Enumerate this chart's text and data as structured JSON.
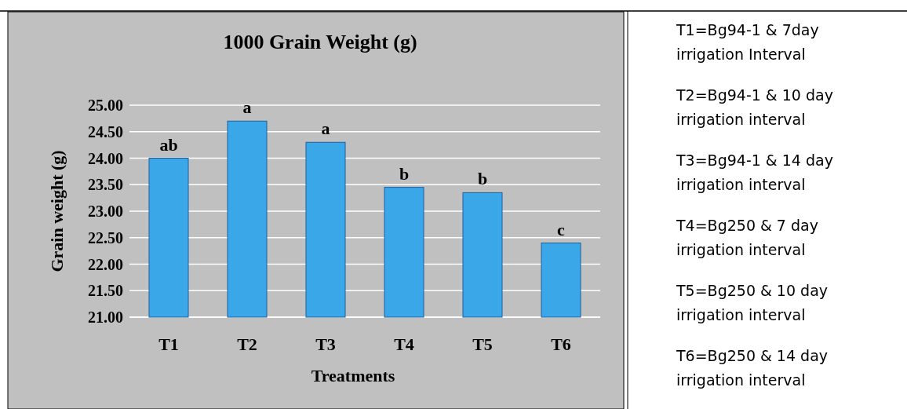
{
  "chart_data": {
    "type": "bar",
    "title": "1000 Grain Weight (g)",
    "xlabel": "Treatments",
    "ylabel": "Grain weight (g)",
    "categories": [
      "T1",
      "T2",
      "T3",
      "T4",
      "T5",
      "T6"
    ],
    "values": [
      24.0,
      24.7,
      24.3,
      23.45,
      23.35,
      22.4
    ],
    "color": "#3aa8e8",
    "ylim": [
      21,
      25
    ],
    "yticks": [
      {
        "value": 21,
        "label": "21.00"
      },
      {
        "value": 21.5,
        "label": "21.50"
      },
      {
        "value": 22,
        "label": "22.00"
      },
      {
        "value": 22.5,
        "label": "22.50"
      },
      {
        "value": 23,
        "label": "23.00"
      },
      {
        "value": 23.5,
        "label": "23.50"
      },
      {
        "value": 24,
        "label": "24.00"
      },
      {
        "value": 24.5,
        "label": "24.50"
      },
      {
        "value": 25,
        "label": "25.00"
      }
    ],
    "grid": "y",
    "annotations": [
      {
        "text": "ab",
        "x": "T1",
        "y": 24.0
      },
      {
        "text": "a",
        "x": "T2",
        "y": 24.7
      },
      {
        "text": "a",
        "x": "T3",
        "y": 24.3
      },
      {
        "text": "b",
        "x": "T4",
        "y": 23.45
      },
      {
        "text": "b",
        "x": "T5",
        "y": 23.35
      },
      {
        "text": "c",
        "x": "T6",
        "y": 22.4
      },
      "T1=Bg94-1 & 7day irrigation Interval",
      "T2=Bg94-1 & 10 day irrigation interval",
      "T3=Bg94-1 & 14 day irrigation interval",
      "T4=Bg250 & 7 day irrigation interval",
      "T5=Bg250 & 10 day irrigation interval",
      "T6=Bg250 & 14 day irrigation interval"
    ]
  }
}
